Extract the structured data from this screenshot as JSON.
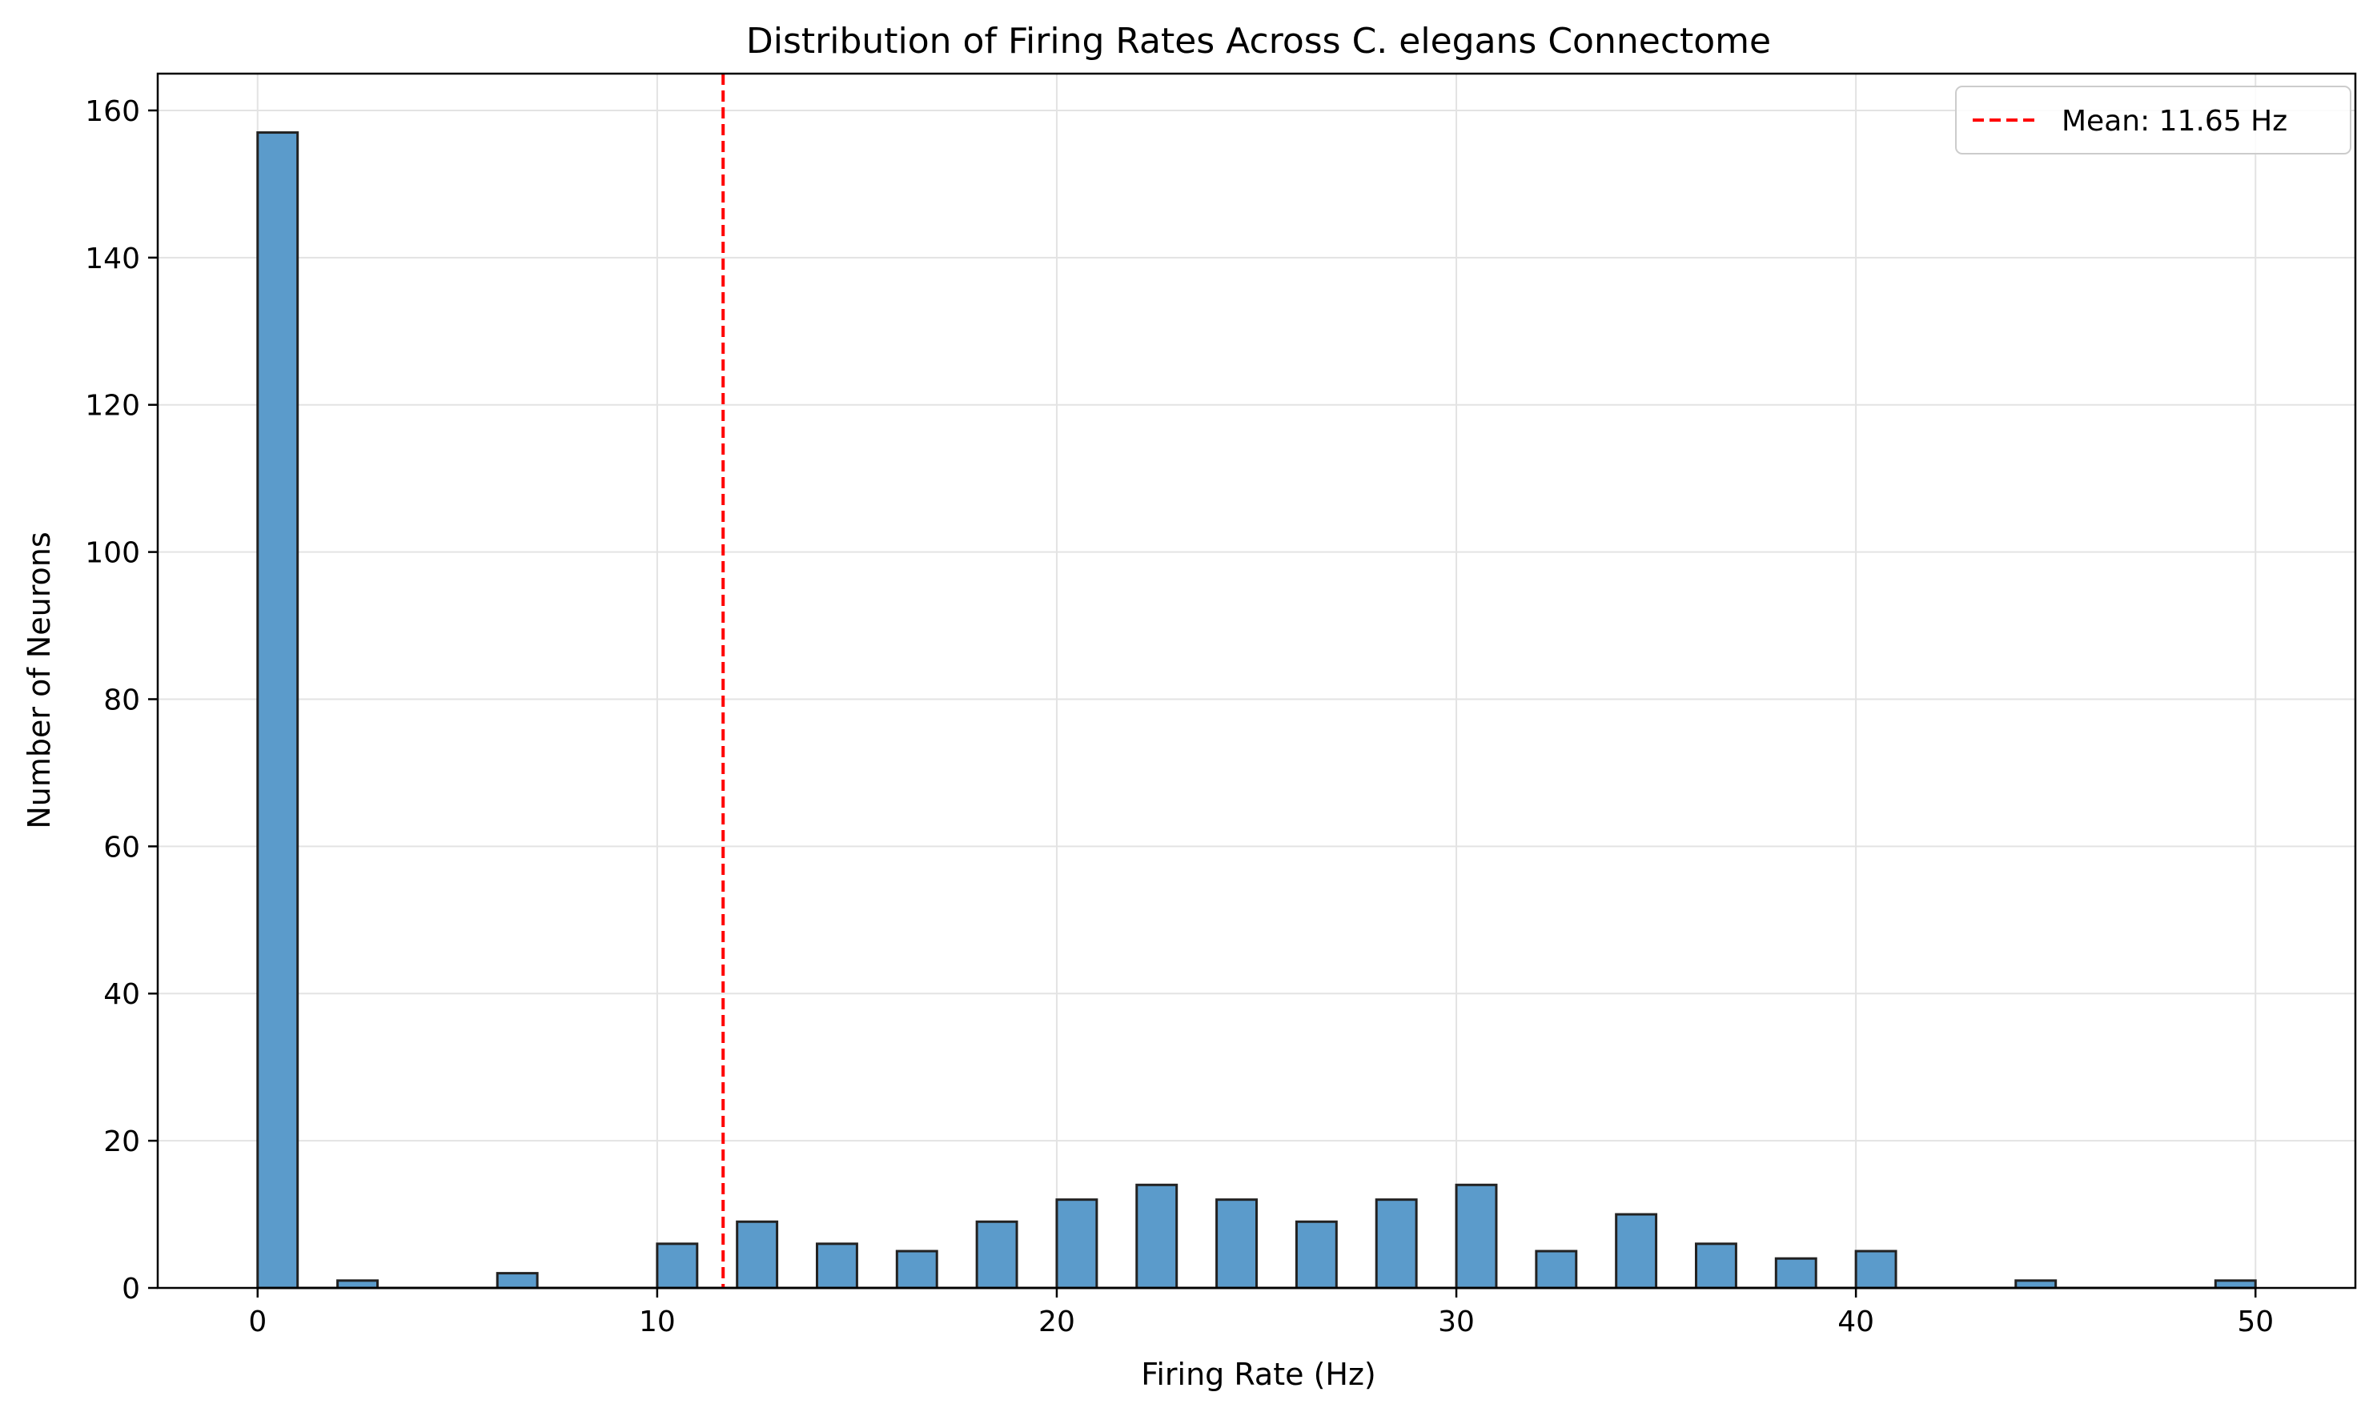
{
  "chart_data": {
    "type": "bar",
    "title": "Distribution of Firing Rates Across C. elegans Connectome",
    "xlabel": "Firing Rate (Hz)",
    "ylabel": "Number of Neurons",
    "xlim": [
      -2.5,
      52.5
    ],
    "ylim": [
      0,
      165
    ],
    "xticks": [
      0,
      10,
      20,
      30,
      40,
      50
    ],
    "yticks": [
      0,
      20,
      40,
      60,
      80,
      100,
      120,
      140,
      160
    ],
    "grid": true,
    "legend_position": "top-right",
    "bin_width": 1.0,
    "bar_color": "#5b9bcb",
    "edge_color": "#222222",
    "bins": [
      {
        "x": 0,
        "count": 157
      },
      {
        "x": 2,
        "count": 1
      },
      {
        "x": 6,
        "count": 2
      },
      {
        "x": 10,
        "count": 6
      },
      {
        "x": 12,
        "count": 9
      },
      {
        "x": 14,
        "count": 6
      },
      {
        "x": 16,
        "count": 5
      },
      {
        "x": 18,
        "count": 9
      },
      {
        "x": 20,
        "count": 12
      },
      {
        "x": 22,
        "count": 14
      },
      {
        "x": 24,
        "count": 12
      },
      {
        "x": 26,
        "count": 9
      },
      {
        "x": 28,
        "count": 12
      },
      {
        "x": 30,
        "count": 14
      },
      {
        "x": 32,
        "count": 5
      },
      {
        "x": 34,
        "count": 10
      },
      {
        "x": 36,
        "count": 6
      },
      {
        "x": 38,
        "count": 4
      },
      {
        "x": 40,
        "count": 5
      },
      {
        "x": 44,
        "count": 1
      },
      {
        "x": 49,
        "count": 1
      }
    ],
    "mean_line": {
      "value": 11.65,
      "label": "Mean: 11.65 Hz",
      "color": "#ff0000"
    }
  }
}
